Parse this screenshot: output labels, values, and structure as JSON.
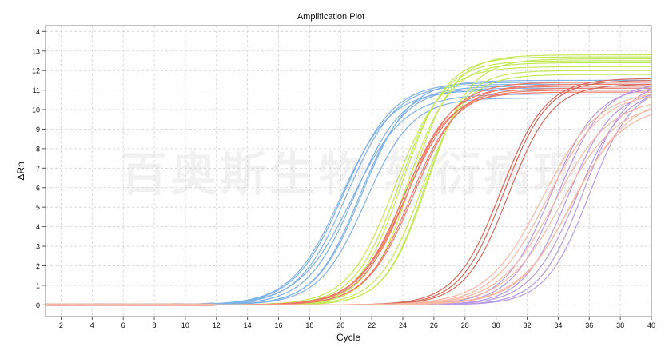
{
  "chart_data": {
    "type": "line",
    "title": "Amplification Plot",
    "xlabel": "Cycle",
    "ylabel": "ΔRn",
    "xlim": [
      1,
      40
    ],
    "ylim": [
      -0.6,
      14.3
    ],
    "xticks": [
      2,
      4,
      6,
      8,
      10,
      12,
      14,
      16,
      18,
      20,
      22,
      24,
      26,
      28,
      30,
      32,
      34,
      36,
      38,
      40
    ],
    "yticks": [
      0,
      1,
      2,
      3,
      4,
      5,
      6,
      7,
      8,
      9,
      10,
      11,
      12,
      13,
      14
    ],
    "grid": true,
    "watermark": "百奥斯生物 转衍病理",
    "curve_model": "sigmoid: dRn = plateau / (1 + exp(-(cycle - midpoint) / slope)), plotted for cycles 1-40",
    "series": [
      {
        "group": "blue",
        "color": "#7fb2e5",
        "plateau": 11.2,
        "midpoint": 20.9,
        "slope": 1.55
      },
      {
        "group": "blue",
        "color": "#7fb2e5",
        "plateau": 11.3,
        "midpoint": 20.4,
        "slope": 1.55
      },
      {
        "group": "blue",
        "color": "#7fb2e5",
        "plateau": 11.4,
        "midpoint": 20.2,
        "slope": 1.6
      },
      {
        "group": "blue",
        "color": "#7fb2e5",
        "plateau": 11.1,
        "midpoint": 21.2,
        "slope": 1.45
      },
      {
        "group": "blue",
        "color": "#7fb2e5",
        "plateau": 11.5,
        "midpoint": 21.4,
        "slope": 1.5
      },
      {
        "group": "blue",
        "color": "#7fb2e5",
        "plateau": 10.8,
        "midpoint": 20.7,
        "slope": 1.7
      },
      {
        "group": "blue",
        "color": "#7fb2e5",
        "plateau": 10.6,
        "midpoint": 21.6,
        "slope": 1.5
      },
      {
        "group": "blue",
        "color": "#7fb2e5",
        "plateau": 11.0,
        "midpoint": 20.0,
        "slope": 1.6
      },
      {
        "group": "green",
        "color": "#c3e85a",
        "plateau": 12.7,
        "midpoint": 24.0,
        "slope": 1.4
      },
      {
        "group": "green",
        "color": "#c3e85a",
        "plateau": 12.5,
        "midpoint": 23.8,
        "slope": 1.45
      },
      {
        "group": "green",
        "color": "#c3e85a",
        "plateau": 12.4,
        "midpoint": 24.3,
        "slope": 1.4
      },
      {
        "group": "green",
        "color": "#c3e85a",
        "plateau": 12.2,
        "midpoint": 23.5,
        "slope": 1.5
      },
      {
        "group": "green",
        "color": "#c3e85a",
        "plateau": 12.8,
        "midpoint": 24.6,
        "slope": 1.35
      },
      {
        "group": "green",
        "color": "#c3e85a",
        "plateau": 12.0,
        "midpoint": 25.4,
        "slope": 1.3
      },
      {
        "group": "green",
        "color": "#c3e85a",
        "plateau": 12.6,
        "midpoint": 25.6,
        "slope": 1.35
      },
      {
        "group": "green",
        "color": "#c3e85a",
        "plateau": 11.8,
        "midpoint": 25.2,
        "slope": 1.4
      },
      {
        "group": "red",
        "color": "#ef7b6a",
        "plateau": 11.4,
        "midpoint": 24.3,
        "slope": 1.5
      },
      {
        "group": "red",
        "color": "#ef7b6a",
        "plateau": 11.2,
        "midpoint": 24.1,
        "slope": 1.5
      },
      {
        "group": "red",
        "color": "#ef7b6a",
        "plateau": 11.0,
        "midpoint": 24.5,
        "slope": 1.45
      },
      {
        "group": "red",
        "color": "#ef7b6a",
        "plateau": 11.3,
        "midpoint": 24.7,
        "slope": 1.5
      },
      {
        "group": "red",
        "color": "#ef7b6a",
        "plateau": 11.1,
        "midpoint": 24.2,
        "slope": 1.55
      },
      {
        "group": "red",
        "color": "#ef7b6a",
        "plateau": 10.9,
        "midpoint": 24.0,
        "slope": 1.5
      },
      {
        "group": "darkred",
        "color": "#d46a5c",
        "plateau": 11.5,
        "midpoint": 30.5,
        "slope": 1.4
      },
      {
        "group": "darkred",
        "color": "#d46a5c",
        "plateau": 11.3,
        "midpoint": 30.8,
        "slope": 1.4
      },
      {
        "group": "darkred",
        "color": "#d46a5c",
        "plateau": 11.6,
        "midpoint": 30.3,
        "slope": 1.45
      },
      {
        "group": "purple",
        "color": "#b89ae2",
        "plateau": 11.4,
        "midpoint": 34.0,
        "slope": 1.5
      },
      {
        "group": "purple",
        "color": "#b89ae2",
        "plateau": 11.2,
        "midpoint": 33.5,
        "slope": 1.5
      },
      {
        "group": "purple",
        "color": "#b89ae2",
        "plateau": 11.0,
        "midpoint": 34.6,
        "slope": 1.45
      },
      {
        "group": "purple",
        "color": "#b89ae2",
        "plateau": 11.5,
        "midpoint": 35.6,
        "slope": 1.4
      },
      {
        "group": "purple",
        "color": "#b89ae2",
        "plateau": 11.3,
        "midpoint": 36.0,
        "slope": 1.4
      },
      {
        "group": "purple",
        "color": "#b89ae2",
        "plateau": 11.1,
        "midpoint": 35.2,
        "slope": 1.5
      },
      {
        "group": "salmon",
        "color": "#f8b8a3",
        "plateau": 10.6,
        "midpoint": 33.8,
        "slope": 1.8
      },
      {
        "group": "salmon",
        "color": "#f8b8a3",
        "plateau": 10.4,
        "midpoint": 34.2,
        "slope": 1.8
      },
      {
        "group": "salmon",
        "color": "#f8b8a3",
        "plateau": 10.9,
        "midpoint": 33.3,
        "slope": 1.75
      },
      {
        "group": "salmon",
        "color": "#f8b8a3",
        "plateau": 10.2,
        "midpoint": 34.8,
        "slope": 1.7
      },
      {
        "group": "salmon",
        "color": "#f8b8a3",
        "plateau": 11.0,
        "midpoint": 33.0,
        "slope": 1.8
      },
      {
        "group": "salmon",
        "color": "#f8b8a3",
        "plateau": 10.7,
        "midpoint": 35.0,
        "slope": 1.8
      }
    ]
  }
}
